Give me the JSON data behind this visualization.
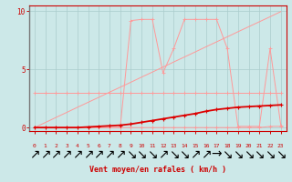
{
  "x": [
    0,
    1,
    2,
    3,
    4,
    5,
    6,
    7,
    8,
    9,
    10,
    11,
    12,
    13,
    14,
    15,
    16,
    17,
    18,
    19,
    20,
    21,
    22,
    23
  ],
  "bg_color": "#cce8e8",
  "grid_color": "#aacccc",
  "xlabel": "Vent moyen/en rafales ( km/h )",
  "yticks": [
    0,
    5,
    10
  ],
  "ylim": [
    -0.3,
    10.5
  ],
  "xlim": [
    -0.5,
    23.5
  ],
  "pink": "#ff9999",
  "red": "#dd0000",
  "axis_color": "#cc0000",
  "line_gust_y": [
    0,
    0,
    0,
    0,
    0,
    0,
    0,
    0,
    0,
    9.2,
    9.3,
    9.3,
    4.7,
    6.8,
    9.3,
    9.3,
    9.3,
    9.3,
    6.8,
    0.1,
    0.1,
    0.1,
    6.8,
    0.2
  ],
  "line_diag_y": [
    0,
    0.43,
    0.87,
    1.3,
    1.74,
    2.17,
    2.6,
    3.04,
    3.47,
    3.9,
    4.34,
    4.77,
    5.2,
    5.64,
    6.07,
    6.5,
    6.94,
    7.37,
    7.8,
    8.24,
    8.67,
    9.1,
    9.53,
    9.97
  ],
  "line_horiz_y": [
    3,
    3,
    3,
    3,
    3,
    3,
    3,
    3,
    3,
    3,
    3,
    3,
    3,
    3,
    3,
    3,
    3,
    3,
    3,
    3,
    3,
    3,
    3,
    3
  ],
  "line_low_y": [
    0,
    0,
    0,
    0,
    0,
    0,
    0,
    0,
    0,
    0,
    0,
    0,
    0,
    0,
    0,
    0,
    0,
    0,
    0,
    0,
    0,
    0,
    0.1,
    0.1
  ],
  "line_mean_y": [
    0,
    0,
    0,
    0,
    0,
    0.05,
    0.1,
    0.15,
    0.2,
    0.3,
    0.45,
    0.6,
    0.75,
    0.9,
    1.05,
    1.2,
    1.4,
    1.55,
    1.65,
    1.75,
    1.8,
    1.85,
    1.9,
    1.95
  ],
  "wind_dirs": [
    "↗",
    "↗",
    "↗",
    "↗",
    "↗",
    "↗",
    "↗",
    "↗",
    "↗",
    "↘",
    "↘",
    "↘",
    "↗",
    "↘",
    "↘",
    "↗",
    "↗",
    "→",
    "↘",
    "↘",
    "↘",
    "↘",
    "↘",
    "↘"
  ]
}
